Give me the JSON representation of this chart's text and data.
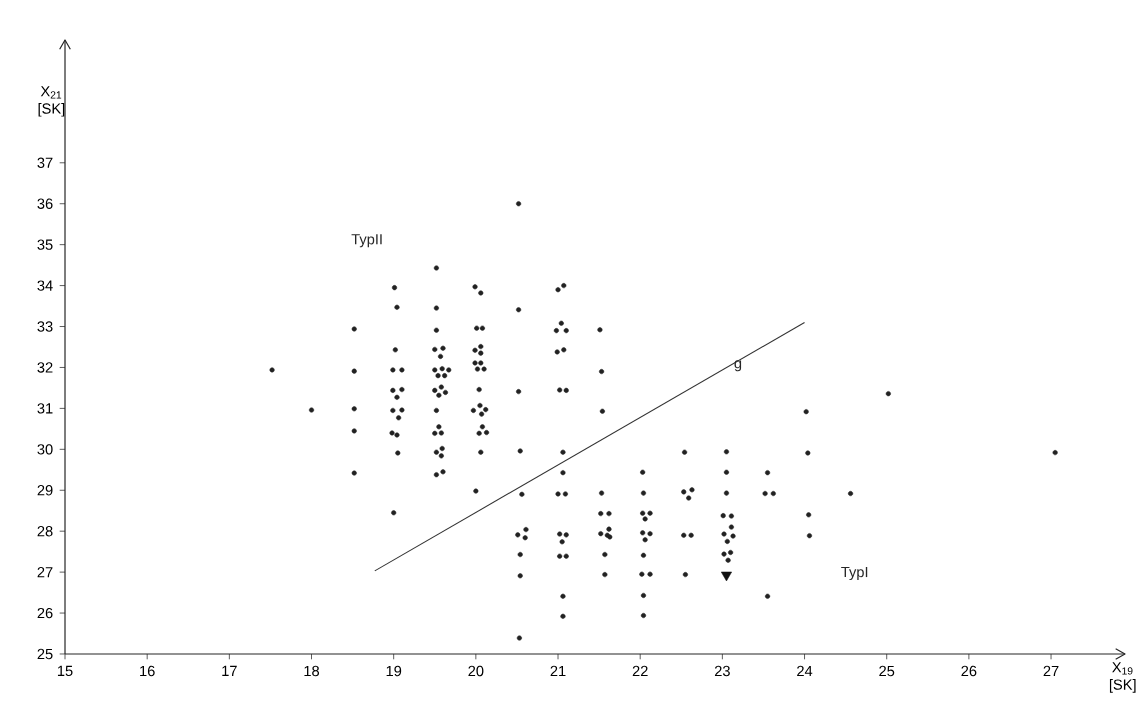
{
  "chart_data": {
    "type": "scatter",
    "xlabel": "X$_{19}$ [SK]",
    "ylabel": "X$_{21}$ [SK]",
    "xlim": [
      15,
      27.9
    ],
    "ylim": [
      25,
      40
    ],
    "xticks": [
      15,
      16,
      17,
      18,
      19,
      20,
      21,
      22,
      23,
      24,
      25,
      26,
      27
    ],
    "yticks": [
      25,
      26,
      27,
      28,
      29,
      30,
      31,
      32,
      33,
      34,
      35,
      36,
      37
    ],
    "series": [
      {
        "marker": "circle",
        "color": "#222222",
        "x": [
          17.52,
          18.0,
          18.52,
          18.52,
          18.52,
          18.52,
          18.52,
          19.01,
          19.04,
          19.02,
          18.99,
          19.1,
          18.99,
          19.1,
          19.04,
          18.99,
          19.1,
          19.06,
          18.98,
          19.04,
          19.05,
          19.0,
          19.52,
          19.52,
          19.52,
          19.5,
          19.6,
          19.57,
          19.5,
          19.59,
          19.67,
          19.54,
          19.62,
          19.5,
          19.58,
          19.63,
          19.55,
          19.52,
          19.5,
          19.55,
          19.58,
          19.52,
          19.59,
          19.58,
          19.52,
          19.6,
          19.99,
          20.06,
          20.01,
          20.08,
          19.99,
          20.06,
          20.06,
          19.99,
          20.06,
          20.02,
          20.1,
          20.04,
          19.97,
          20.05,
          20.12,
          20.07,
          20.04,
          20.08,
          20.13,
          20.06,
          20.0,
          20.52,
          20.52,
          20.52,
          20.54,
          20.56,
          20.51,
          20.61,
          20.6,
          20.54,
          20.54,
          20.53,
          21.0,
          21.07,
          21.04,
          20.98,
          21.1,
          20.99,
          21.07,
          21.02,
          21.1,
          21.06,
          21.06,
          21.0,
          21.09,
          21.02,
          21.1,
          21.05,
          21.02,
          21.1,
          21.06,
          21.06,
          21.51,
          21.53,
          21.54,
          21.53,
          21.52,
          21.62,
          21.52,
          21.62,
          21.63,
          21.6,
          21.57,
          21.57,
          22.03,
          22.04,
          22.03,
          22.12,
          22.06,
          22.03,
          22.12,
          22.06,
          22.04,
          22.02,
          22.12,
          22.04,
          22.04,
          22.54,
          22.53,
          22.63,
          22.59,
          22.53,
          22.62,
          22.55,
          23.05,
          23.05,
          23.05,
          23.01,
          23.11,
          23.11,
          23.02,
          23.13,
          23.06,
          23.02,
          23.1,
          23.07,
          23.55,
          23.52,
          23.62,
          23.55,
          24.02,
          24.04,
          24.05,
          24.06,
          24.56,
          25.02,
          27.05
        ],
        "values": [
          31.94,
          30.96,
          32.94,
          31.91,
          30.99,
          30.45,
          29.42,
          33.95,
          33.47,
          32.43,
          31.94,
          31.94,
          31.44,
          31.46,
          31.27,
          30.95,
          30.96,
          30.77,
          30.4,
          30.35,
          29.91,
          28.45,
          34.43,
          33.45,
          32.91,
          32.44,
          32.47,
          32.27,
          31.94,
          31.97,
          31.94,
          31.8,
          31.8,
          31.44,
          31.52,
          31.39,
          31.32,
          30.95,
          30.39,
          30.55,
          30.4,
          29.93,
          30.02,
          29.84,
          29.38,
          29.45,
          33.97,
          33.82,
          32.96,
          32.96,
          32.42,
          32.51,
          32.35,
          32.11,
          32.11,
          31.96,
          31.96,
          31.46,
          30.95,
          31.07,
          30.97,
          30.86,
          30.39,
          30.55,
          30.41,
          29.93,
          28.98,
          36.0,
          33.41,
          31.41,
          29.96,
          28.9,
          27.91,
          28.04,
          27.84,
          27.43,
          26.91,
          25.39,
          33.9,
          34.0,
          33.08,
          32.9,
          32.9,
          32.38,
          32.43,
          31.45,
          31.44,
          29.93,
          29.43,
          28.91,
          28.91,
          27.93,
          27.91,
          27.74,
          27.39,
          27.39,
          26.41,
          25.92,
          32.92,
          31.9,
          30.93,
          28.93,
          28.43,
          28.43,
          27.94,
          28.05,
          27.86,
          27.9,
          27.43,
          26.94,
          29.44,
          28.93,
          28.44,
          28.44,
          28.3,
          27.96,
          27.94,
          27.79,
          27.41,
          26.95,
          26.95,
          26.43,
          25.94,
          29.93,
          28.96,
          29.01,
          28.81,
          27.9,
          27.9,
          26.94,
          29.94,
          29.44,
          28.93,
          28.38,
          28.37,
          28.1,
          27.93,
          27.88,
          27.75,
          27.44,
          27.48,
          27.29,
          29.43,
          28.92,
          28.92,
          26.41,
          30.92,
          29.91,
          28.4,
          27.89,
          28.92,
          31.36,
          29.92
        ]
      },
      {
        "marker": "triangle",
        "color": "#111111",
        "x": [
          23.05
        ],
        "values": [
          26.93
        ]
      },
      {
        "type": "line",
        "color": "#333333",
        "x": [
          18.77,
          24.0
        ],
        "values": [
          27.03,
          33.1
        ]
      }
    ],
    "annotations": [
      {
        "text": "g",
        "x": 23.19,
        "y": 32.04
      },
      "TypII",
      "TypI"
    ]
  }
}
